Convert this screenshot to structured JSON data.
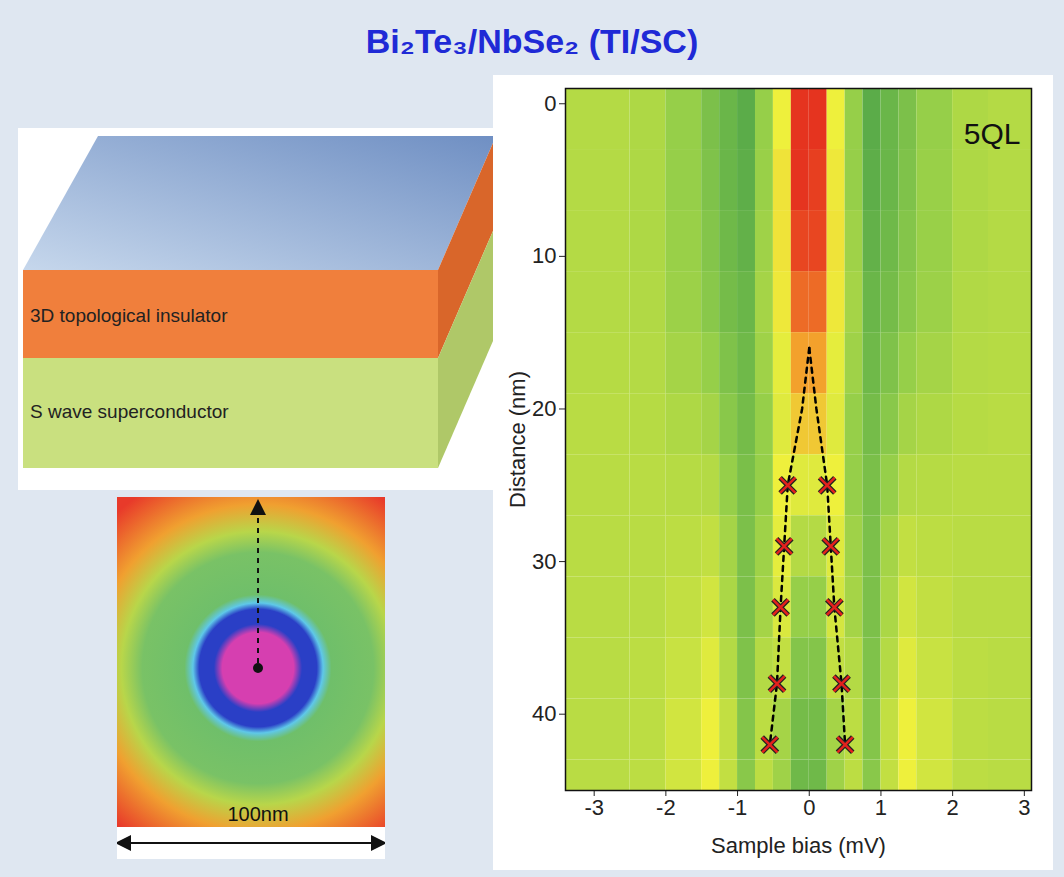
{
  "slide": {
    "title": "Bi₂Te₃/NbSe₂ (TI/SC)",
    "schematic": {
      "layers": [
        "3D topological insulator",
        "S wave superconductor"
      ]
    },
    "map": {
      "scale_label": "100nm"
    }
  },
  "chart_data": {
    "type": "heatmap",
    "x_label": "Sample bias (mV)",
    "y_label": "Distance (nm)",
    "xlim": [
      -3.4,
      3.1
    ],
    "xticks": [
      -3,
      -2,
      -1,
      0,
      1,
      2,
      3
    ],
    "ylim": [
      -1,
      45
    ],
    "yticks": [
      0,
      10,
      20,
      30,
      40
    ],
    "zlim": [
      0.5,
      1.8
    ],
    "colors": [
      "#3d9a48",
      "#8fcc4a",
      "#eef03c",
      "#f39a2b",
      "#e3211d"
    ],
    "x_edges": [
      -3.5,
      -2.5,
      -2,
      -1.5,
      -1.25,
      -1,
      -0.75,
      -0.5,
      -0.25,
      0,
      0.25,
      0.5,
      0.75,
      1,
      1.25,
      1.5,
      2,
      2.5,
      3.5
    ],
    "y_edges": [
      -1,
      3,
      7,
      11,
      15,
      19,
      23,
      27,
      31,
      35,
      39,
      43,
      45
    ],
    "z": [
      [
        0.95,
        0.93,
        0.85,
        0.75,
        0.68,
        0.62,
        0.85,
        1.15,
        1.75,
        1.75,
        1.15,
        0.85,
        0.62,
        0.68,
        0.75,
        0.85,
        0.93,
        0.95
      ],
      [
        0.95,
        0.93,
        0.85,
        0.76,
        0.68,
        0.63,
        0.86,
        1.2,
        1.75,
        1.72,
        1.18,
        0.85,
        0.63,
        0.68,
        0.76,
        0.86,
        0.93,
        0.95
      ],
      [
        0.95,
        0.93,
        0.86,
        0.78,
        0.7,
        0.65,
        0.88,
        1.2,
        1.7,
        1.7,
        1.2,
        0.88,
        0.65,
        0.7,
        0.78,
        0.86,
        0.93,
        0.95
      ],
      [
        0.95,
        0.94,
        0.87,
        0.8,
        0.72,
        0.68,
        0.9,
        1.18,
        1.6,
        1.6,
        1.18,
        0.9,
        0.68,
        0.72,
        0.8,
        0.87,
        0.94,
        0.95
      ],
      [
        0.96,
        0.95,
        0.9,
        0.85,
        0.76,
        0.7,
        0.88,
        1.12,
        1.45,
        1.45,
        1.12,
        0.88,
        0.7,
        0.76,
        0.85,
        0.9,
        0.95,
        0.96
      ],
      [
        0.97,
        0.96,
        0.93,
        0.9,
        0.8,
        0.72,
        0.85,
        1.1,
        1.3,
        1.3,
        1.1,
        0.85,
        0.72,
        0.8,
        0.9,
        0.93,
        0.96,
        0.97
      ],
      [
        0.97,
        0.97,
        0.96,
        0.95,
        0.85,
        0.74,
        0.85,
        1.15,
        1.1,
        1.1,
        1.15,
        0.85,
        0.74,
        0.85,
        0.95,
        0.96,
        0.97,
        0.97
      ],
      [
        0.97,
        0.97,
        0.98,
        1.0,
        0.9,
        0.75,
        0.88,
        1.12,
        0.95,
        0.95,
        1.1,
        0.88,
        0.75,
        0.9,
        1.0,
        0.98,
        0.97,
        0.97
      ],
      [
        0.97,
        0.97,
        1.0,
        1.05,
        0.92,
        0.75,
        0.9,
        1.08,
        0.85,
        0.85,
        1.06,
        0.9,
        0.75,
        0.92,
        1.05,
        1.0,
        0.97,
        0.97
      ],
      [
        0.97,
        0.98,
        1.02,
        1.1,
        0.95,
        0.76,
        0.95,
        1.0,
        0.78,
        0.78,
        1.0,
        0.95,
        0.76,
        0.95,
        1.1,
        1.02,
        0.98,
        0.97
      ],
      [
        0.97,
        0.98,
        1.05,
        1.15,
        1.0,
        0.78,
        0.98,
        0.9,
        0.72,
        0.72,
        0.9,
        0.98,
        0.78,
        1.0,
        1.15,
        1.05,
        0.98,
        0.97
      ],
      [
        0.97,
        0.98,
        1.05,
        1.15,
        1.0,
        0.8,
        0.98,
        0.88,
        0.7,
        0.7,
        0.88,
        0.98,
        0.8,
        1.0,
        1.15,
        1.05,
        0.98,
        0.97
      ]
    ],
    "peak_marks": {
      "x": [
        -0.3,
        0.25,
        -0.35,
        0.3,
        -0.4,
        0.35,
        -0.45,
        0.45,
        -0.55,
        0.5
      ],
      "y": [
        25,
        25,
        29,
        29,
        33,
        33,
        38,
        38,
        42,
        42
      ],
      "marker": "x",
      "color": "#e3211d"
    },
    "guide_lines": [
      {
        "x": [
          0,
          -0.1,
          -0.3,
          -0.35,
          -0.4,
          -0.45,
          -0.55
        ],
        "y": [
          16,
          20,
          25,
          29,
          33,
          38,
          42
        ],
        "line_style": "dashed",
        "color": "#000000"
      },
      {
        "x": [
          0,
          0.1,
          0.25,
          0.3,
          0.35,
          0.45,
          0.5
        ],
        "y": [
          16,
          20,
          25,
          29,
          33,
          38,
          42
        ],
        "line_style": "dashed",
        "color": "#000000"
      }
    ],
    "annotations": [
      {
        "text": "5QL",
        "x": 2.55,
        "y": 2
      }
    ]
  }
}
